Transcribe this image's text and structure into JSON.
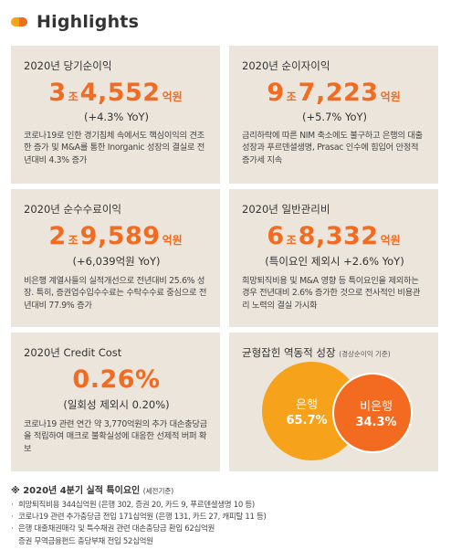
{
  "header": {
    "title": "Highlights"
  },
  "cards": [
    {
      "title": "2020년 당기순이익",
      "value_big1": "3",
      "unit1": "조",
      "value_big2": "4,552",
      "unit2": "억원",
      "sub": "(+4.3% YoY)",
      "desc": "코로나19로 인한 경기침체 속에서도 핵심이익의 견조한 증가 및 M&A를 통한 Inorganic 성장의 결실로 전년대비 4.3% 증가"
    },
    {
      "title": "2020년 순이자이익",
      "value_big1": "9",
      "unit1": "조",
      "value_big2": "7,223",
      "unit2": "억원",
      "sub": "(+5.7% YoY)",
      "desc": "금리하락에 따른 NIM 축소에도 불구하고 은행의 대출성장과 푸르덴셜생명, Prasac 인수에 힘입어 안정적 증가세 지속"
    },
    {
      "title": "2020년 순수수료이익",
      "value_big1": "2",
      "unit1": "조",
      "value_big2": "9,589",
      "unit2": "억원",
      "sub": "(+6,039억원 YoY)",
      "desc": "비은행 계열사들의 실적개선으로 전년대비 25.6% 성장. 특히, 증권업수입수수료는 수탁수수료 중심으로 전년대비 77.9% 증가"
    },
    {
      "title": "2020년 일반관리비",
      "value_big1": "6",
      "unit1": "조",
      "value_big2": "8,332",
      "unit2": "억원",
      "sub": "(특이요인 제외시 +2.6% YoY)",
      "desc": "희망퇴직비용 및 M&A 영향 등 특이요인을 제외하는 경우 전년대비 2.6% 증가한 것으로 전사적인 비용관리 노력의 결실 가시화"
    },
    {
      "title": "2020년 Credit Cost",
      "value": "0.26%",
      "sub": "(일회성 제외시 0.20%)",
      "desc": "코로나19 관련 연간 약 3,770억원의 추가 대손충당금을 적립하여 매크로 불확실성에 대응한 선제적 버퍼 확보"
    }
  ],
  "balance": {
    "title": "균형잡힌 역동적 성장",
    "note": "(경상순이익 기준)",
    "bank_label": "은행",
    "bank_pct": "65.7%",
    "nonbank_label": "비은행",
    "nonbank_pct": "34.3%"
  },
  "notes": {
    "title": "※ 2020년 4분기 실적 특이요인",
    "title_paren": "(세전기준)",
    "items": [
      "희망퇴직비용 344십억원 (은행 302, 증권 20, 카드 9, 푸르덴셜생명 10 등)",
      "코로나19 관련 추가충당금 전입 171십억원 (은행 131, 카드 27, 캐피탈 11 등)",
      "은행 대출채권매각 및 특수채권 관련 대손충당금 환입 62십억원",
      "증권 무역금융펀드 충당부채 전입 52십억원"
    ]
  },
  "colors": {
    "accent_orange": "#f26b21",
    "accent_yellow": "#f7a21b",
    "card_bg": "#ece5dc"
  }
}
